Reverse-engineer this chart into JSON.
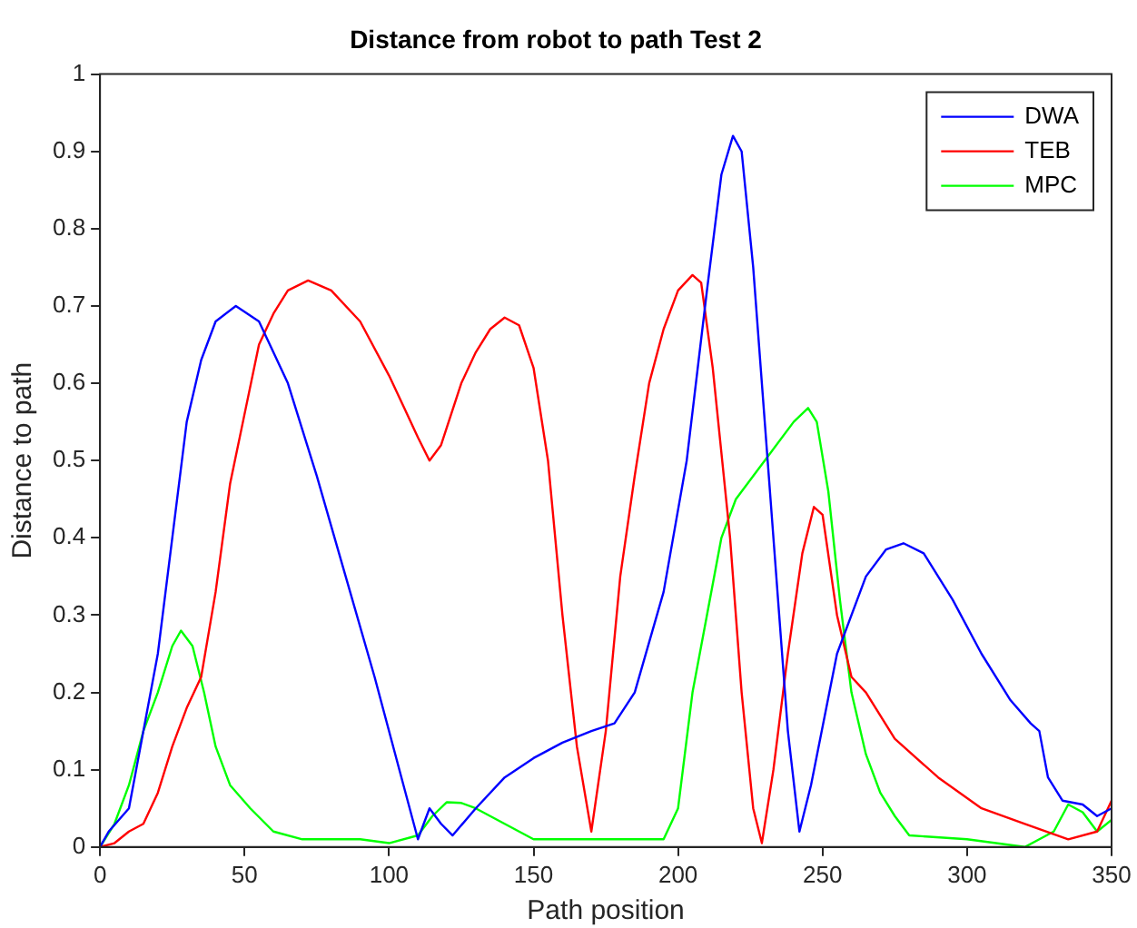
{
  "chart_data": {
    "type": "line",
    "title": "Distance from robot to path Test 2",
    "xlabel": "Path position",
    "ylabel": "Distance to path",
    "xlim": [
      0,
      350
    ],
    "xticks": [
      0,
      50,
      100,
      150,
      200,
      250,
      300,
      350
    ],
    "ylim": [
      0,
      1
    ],
    "yticks": [
      0,
      0.1,
      0.2,
      0.3,
      0.4,
      0.5,
      0.6,
      0.7,
      0.8,
      0.9,
      1
    ],
    "grid": false,
    "legend": "top right",
    "marker": "none",
    "line_style": "solid",
    "series": [
      {
        "name": "DWA",
        "color": "#0000ff",
        "x": [
          0,
          3,
          10,
          20,
          25,
          30,
          35,
          40,
          47,
          55,
          65,
          75,
          85,
          95,
          105,
          110,
          114,
          118,
          122,
          130,
          140,
          150,
          160,
          170,
          178,
          185,
          195,
          203,
          210,
          215,
          219,
          222,
          226,
          232,
          238,
          242,
          246,
          255,
          265,
          272,
          278,
          285,
          295,
          305,
          315,
          322,
          325,
          328,
          333,
          340,
          345,
          350
        ],
        "values": [
          0,
          0.02,
          0.05,
          0.25,
          0.4,
          0.55,
          0.63,
          0.68,
          0.7,
          0.68,
          0.6,
          0.48,
          0.35,
          0.22,
          0.08,
          0.01,
          0.05,
          0.03,
          0.015,
          0.05,
          0.09,
          0.115,
          0.135,
          0.15,
          0.16,
          0.2,
          0.33,
          0.5,
          0.72,
          0.87,
          0.92,
          0.9,
          0.75,
          0.45,
          0.15,
          0.02,
          0.08,
          0.25,
          0.35,
          0.385,
          0.393,
          0.38,
          0.32,
          0.25,
          0.19,
          0.16,
          0.15,
          0.09,
          0.06,
          0.055,
          0.04,
          0.05
        ]
      },
      {
        "name": "TEB",
        "color": "#ff0000",
        "x": [
          0,
          5,
          10,
          15,
          20,
          25,
          30,
          35,
          40,
          45,
          50,
          55,
          60,
          65,
          72,
          80,
          90,
          100,
          105,
          110,
          114,
          118,
          125,
          130,
          135,
          140,
          145,
          150,
          155,
          160,
          165,
          170,
          175,
          180,
          185,
          190,
          195,
          200,
          205,
          208,
          212,
          218,
          222,
          226,
          229,
          233,
          238,
          243,
          247,
          250,
          255,
          260,
          265,
          275,
          290,
          305,
          320,
          335,
          345,
          350
        ],
        "values": [
          0,
          0.005,
          0.02,
          0.03,
          0.07,
          0.13,
          0.18,
          0.22,
          0.33,
          0.47,
          0.56,
          0.65,
          0.69,
          0.72,
          0.733,
          0.72,
          0.68,
          0.61,
          0.57,
          0.53,
          0.5,
          0.52,
          0.6,
          0.64,
          0.67,
          0.685,
          0.675,
          0.62,
          0.5,
          0.3,
          0.13,
          0.02,
          0.15,
          0.35,
          0.48,
          0.6,
          0.67,
          0.72,
          0.74,
          0.73,
          0.62,
          0.4,
          0.2,
          0.05,
          0.005,
          0.1,
          0.25,
          0.38,
          0.44,
          0.43,
          0.3,
          0.22,
          0.2,
          0.14,
          0.09,
          0.05,
          0.03,
          0.01,
          0.02,
          0.06
        ]
      },
      {
        "name": "MPC",
        "color": "#00ff00",
        "x": [
          0,
          5,
          10,
          15,
          20,
          25,
          28,
          32,
          36,
          40,
          45,
          52,
          60,
          70,
          80,
          90,
          100,
          110,
          115,
          120,
          125,
          130,
          140,
          150,
          170,
          195,
          200,
          205,
          210,
          215,
          220,
          230,
          240,
          245,
          248,
          252,
          256,
          260,
          265,
          270,
          275,
          280,
          300,
          320,
          330,
          335,
          340,
          345,
          350
        ],
        "values": [
          0,
          0.03,
          0.08,
          0.15,
          0.2,
          0.26,
          0.28,
          0.26,
          0.2,
          0.13,
          0.08,
          0.05,
          0.02,
          0.01,
          0.01,
          0.01,
          0.005,
          0.015,
          0.04,
          0.058,
          0.057,
          0.05,
          0.03,
          0.01,
          0.01,
          0.01,
          0.05,
          0.2,
          0.3,
          0.4,
          0.45,
          0.5,
          0.55,
          0.568,
          0.55,
          0.46,
          0.32,
          0.2,
          0.12,
          0.07,
          0.04,
          0.015,
          0.01,
          0,
          0.02,
          0.055,
          0.045,
          0.02,
          0.035
        ]
      }
    ]
  }
}
